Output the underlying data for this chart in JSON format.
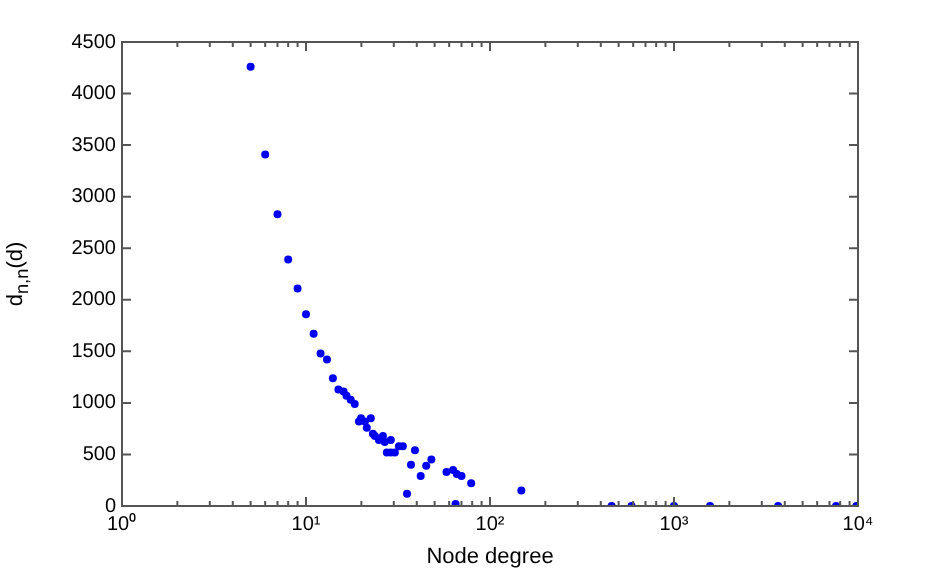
{
  "chart_data": {
    "type": "scatter",
    "xlabel": "Node degree",
    "ylabel": "d$_{n,n}$(d)",
    "log": "x",
    "marker": "circle",
    "xlim": [
      1,
      10000
    ],
    "ylim": [
      0,
      4500
    ],
    "xticks": [
      {
        "value": 1,
        "label": "10⁰"
      },
      {
        "value": 2,
        "label": null
      },
      {
        "value": 3,
        "label": null
      },
      {
        "value": 4,
        "label": null
      },
      {
        "value": 5,
        "label": null
      },
      {
        "value": 6,
        "label": null
      },
      {
        "value": 7,
        "label": null
      },
      {
        "value": 8,
        "label": null
      },
      {
        "value": 9,
        "label": null
      },
      {
        "value": 10,
        "label": "10¹"
      },
      {
        "value": 20,
        "label": null
      },
      {
        "value": 30,
        "label": null
      },
      {
        "value": 40,
        "label": null
      },
      {
        "value": 50,
        "label": null
      },
      {
        "value": 60,
        "label": null
      },
      {
        "value": 70,
        "label": null
      },
      {
        "value": 80,
        "label": null
      },
      {
        "value": 90,
        "label": null
      },
      {
        "value": 100,
        "label": "10²"
      },
      {
        "value": 200,
        "label": null
      },
      {
        "value": 300,
        "label": null
      },
      {
        "value": 400,
        "label": null
      },
      {
        "value": 500,
        "label": null
      },
      {
        "value": 600,
        "label": null
      },
      {
        "value": 700,
        "label": null
      },
      {
        "value": 800,
        "label": null
      },
      {
        "value": 900,
        "label": null
      },
      {
        "value": 1000,
        "label": "10³"
      },
      {
        "value": 2000,
        "label": null
      },
      {
        "value": 3000,
        "label": null
      },
      {
        "value": 4000,
        "label": null
      },
      {
        "value": 5000,
        "label": null
      },
      {
        "value": 6000,
        "label": null
      },
      {
        "value": 7000,
        "label": null
      },
      {
        "value": 8000,
        "label": null
      },
      {
        "value": 9000,
        "label": null
      },
      {
        "value": 10000,
        "label": "10⁴"
      }
    ],
    "yticks": [
      0,
      500,
      1000,
      1500,
      2000,
      2500,
      3000,
      3500,
      4000,
      4500
    ],
    "series": [
      {
        "color": "#0000ee",
        "x": [
          5,
          6,
          7,
          8,
          9,
          10,
          11,
          12,
          13,
          14,
          15,
          16,
          16.6,
          17.5,
          18.4,
          19.9,
          19.4,
          20.9,
          22.5,
          21.4,
          23.1,
          23.7,
          24.9,
          26.2,
          26.8,
          27.5,
          28.9,
          28.9,
          30.4,
          32,
          33.6,
          35.4,
          37.2,
          39.1,
          42,
          45,
          48,
          58,
          63,
          66,
          70,
          65,
          79,
          148,
          458,
          588,
          1000,
          1570,
          3680,
          7600,
          9800
        ],
        "values": [
          4260,
          3410,
          2830,
          2390,
          2110,
          1860,
          1670,
          1480,
          1420,
          1240,
          1130,
          1110,
          1070,
          1030,
          990,
          850,
          820,
          820,
          850,
          760,
          700,
          680,
          640,
          680,
          620,
          520,
          640,
          520,
          520,
          580,
          580,
          120,
          400,
          540,
          290,
          390,
          450,
          330,
          350,
          310,
          290,
          20,
          220,
          150,
          0,
          0,
          0,
          0,
          0,
          0,
          0
        ]
      }
    ]
  }
}
